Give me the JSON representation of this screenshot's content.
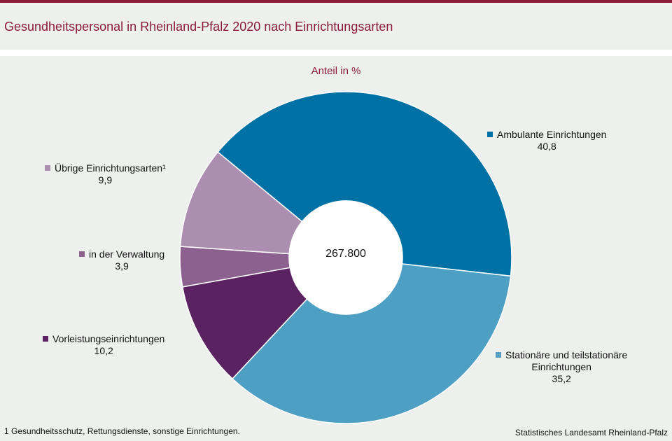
{
  "title": "Gesundheitspersonal in Rheinland-Pfalz 2020 nach Einrichtungsarten",
  "footnote": "1 Gesundheitsschutz,  Rettungsdienste,  sonstige Einrichtungen.",
  "source": "Statistisches Landesamt Rheinland-Pfalz",
  "chart_data": {
    "type": "pie",
    "subtitle": "Anteil in %",
    "center_label": "267.800",
    "slices": [
      {
        "name": "Ambulante Einrichtungen",
        "name_lines": [
          "Ambulante Einrichtungen"
        ],
        "value": 40.8,
        "value_label": "40,8",
        "color": "#0071a4"
      },
      {
        "name": "Stationäre und teilstationäre Einrichtungen",
        "name_lines": [
          "Stationäre und teilstationäre",
          "Einrichtungen"
        ],
        "value": 35.2,
        "value_label": "35,2",
        "color": "#4da0c3"
      },
      {
        "name": "Vorleistungseinrichtungen",
        "name_lines": [
          "Vorleistungseinrichtungen"
        ],
        "value": 10.2,
        "value_label": "10,2",
        "color": "#5a2260"
      },
      {
        "name": "in der Verwaltung",
        "name_lines": [
          "in der Verwaltung"
        ],
        "value": 3.9,
        "value_label": "3,9",
        "color": "#8c6190"
      },
      {
        "name": "Übrige Einrichtungsarten¹",
        "name_lines": [
          "Übrige Einrichtungsarten¹"
        ],
        "value": 9.9,
        "value_label": "9,9",
        "color": "#ab8eb0"
      }
    ]
  }
}
